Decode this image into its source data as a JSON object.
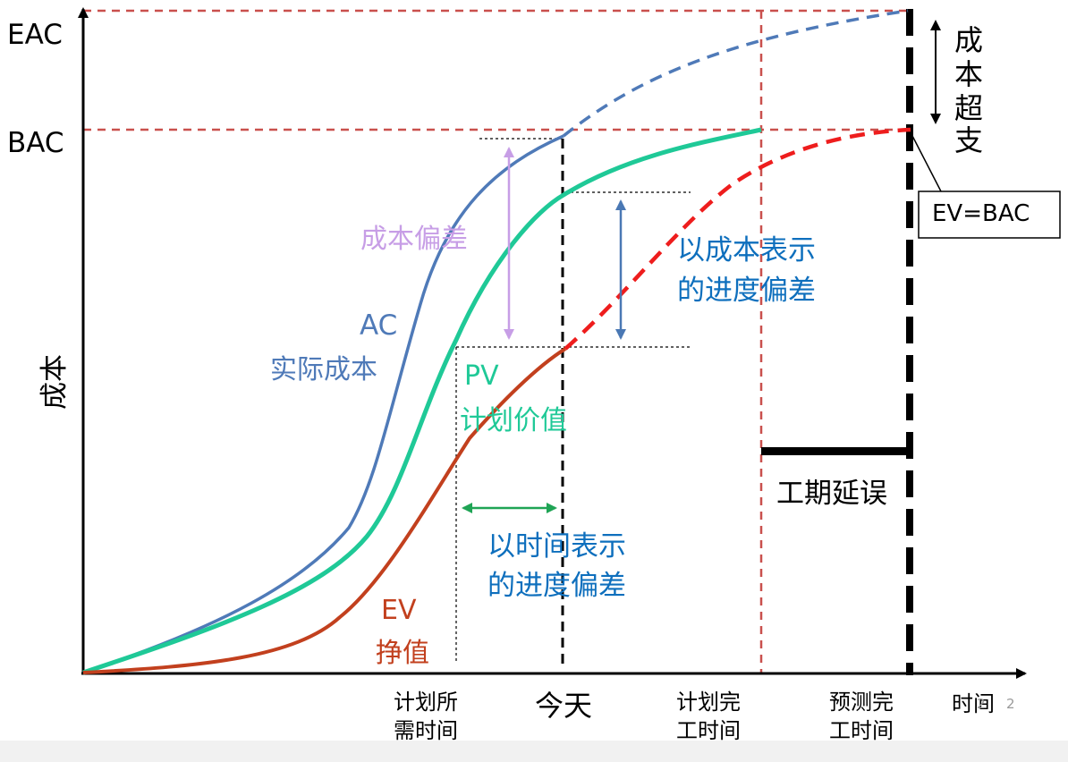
{
  "colors": {
    "ac": "#4f7ab8",
    "pv": "#1fc997",
    "ev": "#c2401e",
    "ev_forecast": "#ee1d1d",
    "guide_red": "#c9504d",
    "cost_variance": "#c79ee6",
    "schedule_cost": "#4a78b4",
    "schedule_time": "#1fa455",
    "blue_text": "#0e6fbd",
    "axis": "#000000"
  },
  "chart_data": {
    "type": "line",
    "title": "",
    "xlabel": "时间",
    "ylabel": "成本",
    "x_markers": [
      {
        "key": "pv_time",
        "label_lines": [
          "计划所",
          "需时间"
        ]
      },
      {
        "key": "today",
        "label_lines": [
          "今天"
        ]
      },
      {
        "key": "planned_finish",
        "label_lines": [
          "计划完",
          "工时间"
        ]
      },
      {
        "key": "forecast_finish",
        "label_lines": [
          "预测完",
          "工时间"
        ]
      }
    ],
    "y_markers": [
      {
        "key": "eac",
        "label": "EAC"
      },
      {
        "key": "bac",
        "label": "BAC"
      }
    ],
    "series": [
      {
        "key": "ac",
        "name": "AC",
        "subname": "实际成本",
        "style": "solid+dashed-forecast"
      },
      {
        "key": "pv",
        "name": "PV",
        "subname": "计划价值",
        "style": "solid"
      },
      {
        "key": "ev",
        "name": "EV",
        "subname": "挣值",
        "style": "solid+dashed-forecast"
      }
    ],
    "annotations": {
      "cost_variance": "成本偏差",
      "schedule_variance_cost": [
        "以成本表示",
        "的进度偏差"
      ],
      "schedule_variance_time": [
        "以时间表示",
        "的进度偏差"
      ],
      "cost_overrun": [
        "成",
        "本",
        "超",
        "支"
      ],
      "delay": "工期延误",
      "ev_equals_bac": "EV=BAC"
    }
  },
  "page_number": "2"
}
